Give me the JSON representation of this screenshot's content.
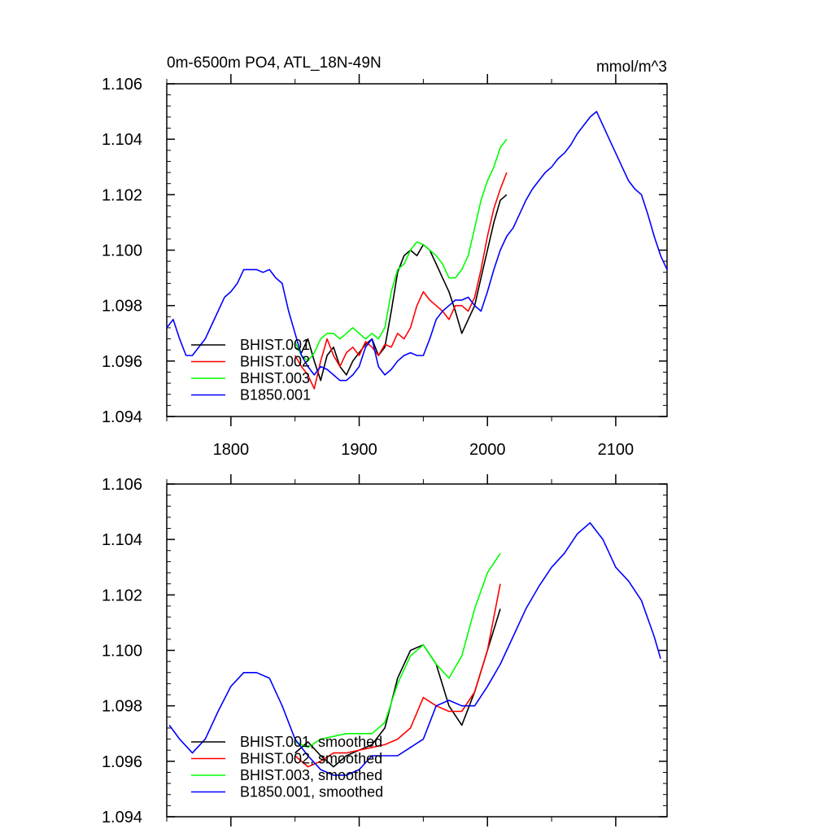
{
  "chart_data": [
    {
      "type": "line",
      "title": "0m-6500m PO4, ATL_18N-49N",
      "units": "mmol/m^3",
      "xlim": [
        1750,
        2140
      ],
      "ylim": [
        1.094,
        1.106
      ],
      "x_ticks": [
        1800,
        1900,
        2000,
        2100
      ],
      "x_tick_labels": [
        "1800",
        "1900",
        "2000",
        "2100"
      ],
      "y_ticks": [
        1.094,
        1.096,
        1.098,
        1.1,
        1.102,
        1.104,
        1.106
      ],
      "y_tick_labels": [
        "1.094",
        "1.096",
        "1.098",
        "1.100",
        "1.102",
        "1.104",
        "1.106"
      ],
      "legend_position": "lower-left",
      "grid": false,
      "series": [
        {
          "name": "BHIST.001",
          "color": "#000000",
          "x": [
            1850,
            1855,
            1860,
            1865,
            1870,
            1875,
            1880,
            1885,
            1890,
            1895,
            1900,
            1905,
            1910,
            1915,
            1920,
            1925,
            1930,
            1935,
            1940,
            1945,
            1950,
            1955,
            1960,
            1965,
            1970,
            1975,
            1980,
            1985,
            1990,
            1995,
            2000,
            2005,
            2010,
            2015
          ],
          "y": [
            1.0965,
            1.0963,
            1.0968,
            1.096,
            1.0953,
            1.0962,
            1.0965,
            1.0958,
            1.0955,
            1.096,
            1.0963,
            1.0966,
            1.0968,
            1.0962,
            1.0965,
            1.0978,
            1.0992,
            1.0998,
            1.1,
            1.0998,
            1.1002,
            1.1,
            1.0995,
            1.099,
            1.0985,
            1.0978,
            1.097,
            1.0975,
            1.098,
            1.099,
            1.1,
            1.101,
            1.1018,
            1.102
          ]
        },
        {
          "name": "BHIST.002",
          "color": "#ff0000",
          "x": [
            1850,
            1855,
            1860,
            1865,
            1870,
            1875,
            1880,
            1885,
            1890,
            1895,
            1900,
            1905,
            1910,
            1915,
            1920,
            1925,
            1930,
            1935,
            1940,
            1945,
            1950,
            1955,
            1960,
            1965,
            1970,
            1975,
            1980,
            1985,
            1990,
            1995,
            2000,
            2005,
            2010,
            2015
          ],
          "y": [
            1.0962,
            1.0958,
            1.0955,
            1.095,
            1.096,
            1.0968,
            1.0962,
            1.0958,
            1.0963,
            1.0965,
            1.0962,
            1.0967,
            1.0965,
            1.0962,
            1.0966,
            1.0965,
            1.097,
            1.0968,
            1.0972,
            1.098,
            1.0985,
            1.0982,
            1.098,
            1.0978,
            1.0975,
            1.098,
            1.098,
            1.0978,
            1.0983,
            1.0993,
            1.1005,
            1.1015,
            1.1022,
            1.1028
          ]
        },
        {
          "name": "BHIST.003",
          "color": "#00ff00",
          "x": [
            1850,
            1855,
            1860,
            1865,
            1870,
            1875,
            1880,
            1885,
            1890,
            1895,
            1900,
            1905,
            1910,
            1915,
            1920,
            1925,
            1930,
            1935,
            1940,
            1945,
            1950,
            1955,
            1960,
            1965,
            1970,
            1975,
            1980,
            1985,
            1990,
            1995,
            2000,
            2005,
            2010,
            2015
          ],
          "y": [
            1.0967,
            1.0962,
            1.096,
            1.0963,
            1.0968,
            1.097,
            1.097,
            1.0968,
            1.097,
            1.0972,
            1.097,
            1.0968,
            1.097,
            1.0968,
            1.0972,
            1.0985,
            1.0993,
            1.0995,
            1.1,
            1.1003,
            1.1002,
            1.1,
            1.0998,
            1.0995,
            1.099,
            1.099,
            1.0993,
            1.0998,
            1.1008,
            1.1018,
            1.1025,
            1.103,
            1.1037,
            1.104
          ]
        },
        {
          "name": "B1850.001",
          "color": "#0000ff",
          "x": [
            1750,
            1755,
            1760,
            1765,
            1770,
            1775,
            1780,
            1785,
            1790,
            1795,
            1800,
            1805,
            1810,
            1815,
            1820,
            1825,
            1830,
            1835,
            1840,
            1845,
            1850,
            1855,
            1860,
            1865,
            1870,
            1875,
            1880,
            1885,
            1890,
            1895,
            1900,
            1905,
            1910,
            1915,
            1920,
            1925,
            1930,
            1935,
            1940,
            1945,
            1950,
            1955,
            1960,
            1965,
            1970,
            1975,
            1980,
            1985,
            1990,
            1995,
            2000,
            2005,
            2010,
            2015,
            2020,
            2025,
            2030,
            2035,
            2040,
            2045,
            2050,
            2055,
            2060,
            2065,
            2070,
            2075,
            2080,
            2085,
            2090,
            2095,
            2100,
            2105,
            2110,
            2115,
            2120,
            2125,
            2130,
            2135,
            2140
          ],
          "y": [
            1.0972,
            1.0975,
            1.0968,
            1.0962,
            1.0962,
            1.0965,
            1.0968,
            1.0973,
            1.0978,
            1.0983,
            1.0985,
            1.0988,
            1.0993,
            1.0993,
            1.0993,
            1.0992,
            1.0993,
            1.099,
            1.0988,
            1.0978,
            1.097,
            1.0962,
            1.0958,
            1.0955,
            1.0958,
            1.0957,
            1.0955,
            1.0953,
            1.0953,
            1.0955,
            1.0958,
            1.0965,
            1.0968,
            1.0958,
            1.0955,
            1.0957,
            1.096,
            1.0962,
            1.0963,
            1.0962,
            1.0962,
            1.0968,
            1.0975,
            1.0978,
            1.098,
            1.0982,
            1.0982,
            1.0983,
            1.098,
            1.0978,
            1.0985,
            1.0993,
            1.1,
            1.1005,
            1.1008,
            1.1013,
            1.1018,
            1.1022,
            1.1025,
            1.1028,
            1.103,
            1.1033,
            1.1035,
            1.1038,
            1.1042,
            1.1045,
            1.1048,
            1.105,
            1.1045,
            1.104,
            1.1035,
            1.103,
            1.1025,
            1.1022,
            1.102,
            1.1013,
            1.1005,
            1.0998,
            1.0993
          ]
        }
      ]
    },
    {
      "type": "line",
      "title": "",
      "xlim": [
        1750,
        2140
      ],
      "ylim": [
        1.094,
        1.106
      ],
      "x_ticks": [
        1800,
        1900,
        2000,
        2100
      ],
      "y_ticks": [
        1.094,
        1.096,
        1.098,
        1.1,
        1.102,
        1.104,
        1.106
      ],
      "y_tick_labels": [
        "1.094",
        "1.096",
        "1.098",
        "1.100",
        "1.102",
        "1.104",
        "1.106"
      ],
      "legend_position": "lower-left",
      "grid": false,
      "series": [
        {
          "name": "BHIST.001, smoothed",
          "color": "#000000",
          "x": [
            1850,
            1860,
            1870,
            1880,
            1890,
            1900,
            1910,
            1920,
            1930,
            1940,
            1950,
            1960,
            1970,
            1980,
            1990,
            2000,
            2010
          ],
          "y": [
            1.0963,
            1.0967,
            1.0962,
            1.0958,
            1.0962,
            1.0964,
            1.0966,
            1.0972,
            1.099,
            1.1,
            1.1002,
            1.0995,
            1.098,
            1.0973,
            1.0985,
            1.1,
            1.1015
          ]
        },
        {
          "name": "BHIST.002, smoothed",
          "color": "#ff0000",
          "x": [
            1850,
            1860,
            1870,
            1880,
            1890,
            1900,
            1910,
            1920,
            1930,
            1940,
            1950,
            1960,
            1970,
            1980,
            1990,
            2000,
            2010
          ],
          "y": [
            1.0962,
            1.0958,
            1.096,
            1.0963,
            1.0963,
            1.0964,
            1.0965,
            1.0966,
            1.0968,
            1.0972,
            1.0983,
            1.098,
            1.0978,
            1.0978,
            1.0985,
            1.1,
            1.1024
          ]
        },
        {
          "name": "BHIST.003, smoothed",
          "color": "#00ff00",
          "x": [
            1850,
            1860,
            1870,
            1880,
            1890,
            1900,
            1910,
            1920,
            1930,
            1940,
            1950,
            1960,
            1970,
            1980,
            1990,
            2000,
            2010
          ],
          "y": [
            1.0967,
            1.0965,
            1.0968,
            1.0969,
            1.097,
            1.097,
            1.097,
            1.0974,
            1.0988,
            1.0998,
            1.1002,
            1.0995,
            1.099,
            1.0998,
            1.1015,
            1.1028,
            1.1035
          ]
        },
        {
          "name": "B1850.001, smoothed",
          "color": "#0000ff",
          "x": [
            1752,
            1760,
            1770,
            1780,
            1790,
            1800,
            1810,
            1820,
            1830,
            1840,
            1850,
            1860,
            1870,
            1880,
            1890,
            1900,
            1910,
            1920,
            1930,
            1940,
            1950,
            1960,
            1970,
            1980,
            1990,
            2000,
            2010,
            2020,
            2030,
            2040,
            2050,
            2060,
            2070,
            2080,
            2090,
            2100,
            2110,
            2120,
            2130,
            2135
          ],
          "y": [
            1.0973,
            1.0968,
            1.0963,
            1.0968,
            1.0978,
            1.0987,
            1.0992,
            1.0992,
            1.099,
            1.098,
            1.0968,
            1.0962,
            1.0957,
            1.0955,
            1.0955,
            1.0957,
            1.0962,
            1.0962,
            1.0962,
            1.0965,
            1.0968,
            1.098,
            1.0982,
            1.098,
            1.098,
            1.0987,
            1.0995,
            1.1005,
            1.1015,
            1.1023,
            1.103,
            1.1035,
            1.1042,
            1.1046,
            1.104,
            1.103,
            1.1025,
            1.1018,
            1.1005,
            1.0997
          ]
        }
      ]
    }
  ]
}
